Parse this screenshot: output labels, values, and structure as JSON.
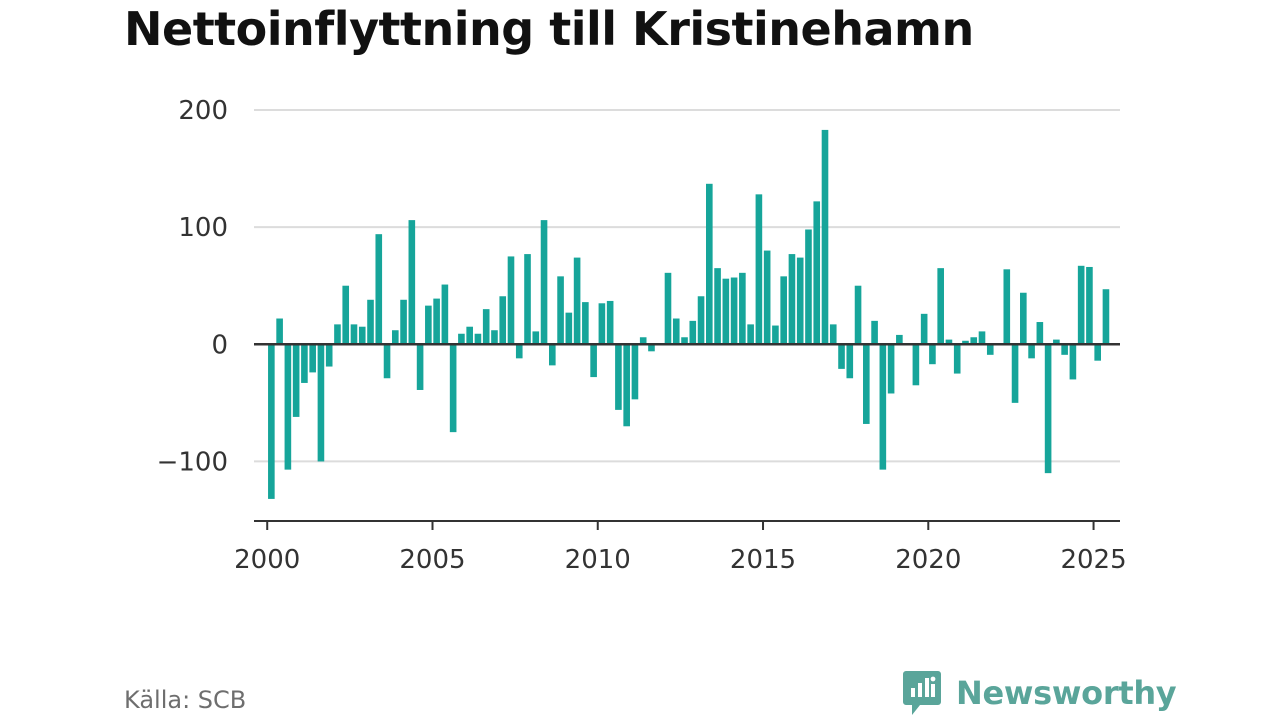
{
  "title": "Nettoinflyttning till Kristinehamn",
  "source": "Källa: SCB",
  "brand": {
    "name": "Newsworthy",
    "icon": "newsworthy-logo-icon",
    "color": "#5aa59a"
  },
  "colors": {
    "bar": "#16a59a",
    "grid": "#dcdcdc",
    "zero_line": "#333333",
    "axis": "#333333"
  },
  "chart_data": {
    "type": "bar",
    "title": "Nettoinflyttning till Kristinehamn",
    "xlabel": "",
    "ylabel": "",
    "ylim": [
      -150,
      200
    ],
    "xlim": [
      1999.6,
      2025.8
    ],
    "grid": true,
    "legend": "none",
    "y_ticks": [
      -100,
      0,
      100,
      200
    ],
    "y_tick_labels": [
      "−100",
      "0",
      "100",
      "200"
    ],
    "x_ticks": [
      2000,
      2005,
      2010,
      2015,
      2020,
      2025
    ],
    "x_tick_labels": [
      "2000",
      "2005",
      "2010",
      "2015",
      "2020",
      "2025"
    ],
    "x": [
      "2000-01-01",
      "2000-04-01",
      "2000-07-01",
      "2000-10-01",
      "2001-01-01",
      "2001-04-01",
      "2001-07-01",
      "2001-10-01",
      "2002-01-01",
      "2002-04-01",
      "2002-07-01",
      "2002-10-01",
      "2003-01-01",
      "2003-04-01",
      "2003-07-01",
      "2003-10-01",
      "2004-01-01",
      "2004-04-01",
      "2004-07-01",
      "2004-10-01",
      "2005-01-01",
      "2005-04-01",
      "2005-07-01",
      "2005-10-01",
      "2006-01-01",
      "2006-04-01",
      "2006-07-01",
      "2006-10-01",
      "2007-01-01",
      "2007-04-01",
      "2007-07-01",
      "2007-10-01",
      "2008-01-01",
      "2008-04-01",
      "2008-07-01",
      "2008-10-01",
      "2009-01-01",
      "2009-04-01",
      "2009-07-01",
      "2009-10-01",
      "2010-01-01",
      "2010-04-01",
      "2010-07-01",
      "2010-10-01",
      "2011-01-01",
      "2011-04-01",
      "2011-07-01",
      "2011-10-01",
      "2012-01-01",
      "2012-04-01",
      "2012-07-01",
      "2012-10-01",
      "2013-01-01",
      "2013-04-01",
      "2013-07-01",
      "2013-10-01",
      "2014-01-01",
      "2014-04-01",
      "2014-07-01",
      "2014-10-01",
      "2015-01-01",
      "2015-04-01",
      "2015-07-01",
      "2015-10-01",
      "2016-01-01",
      "2016-04-01",
      "2016-07-01",
      "2016-10-01",
      "2017-01-01",
      "2017-04-01",
      "2017-07-01",
      "2017-10-01",
      "2018-01-01",
      "2018-04-01",
      "2018-07-01",
      "2018-10-01",
      "2019-01-01",
      "2019-04-01",
      "2019-07-01",
      "2019-10-01",
      "2020-01-01",
      "2020-04-01",
      "2020-07-01",
      "2020-10-01",
      "2021-01-01",
      "2021-04-01",
      "2021-07-01",
      "2021-10-01",
      "2022-01-01",
      "2022-04-01",
      "2022-07-01",
      "2022-10-01",
      "2023-01-01",
      "2023-04-01",
      "2023-07-01",
      "2023-10-01",
      "2024-01-01",
      "2024-04-01",
      "2024-07-01",
      "2024-10-01",
      "2025-01-01",
      "2025-04-01"
    ],
    "values": [
      -132,
      22,
      -107,
      -62,
      -33,
      -24,
      -100,
      -19,
      17,
      50,
      17,
      15,
      38,
      94,
      -29,
      12,
      38,
      106,
      -39,
      33,
      39,
      51,
      -75,
      9,
      15,
      9,
      30,
      12,
      41,
      75,
      -12,
      77,
      11,
      106,
      -18,
      58,
      27,
      74,
      36,
      -28,
      35,
      37,
      -56,
      -70,
      -47,
      6,
      -6,
      -1,
      61,
      22,
      6,
      20,
      41,
      137,
      65,
      56,
      57,
      61,
      17,
      128,
      80,
      16,
      58,
      77,
      74,
      98,
      122,
      183,
      17,
      -21,
      -29,
      50,
      -68,
      20,
      -107,
      -42,
      8,
      -1,
      -35,
      26,
      -17,
      65,
      4,
      -25,
      3,
      6,
      11,
      -9,
      -1,
      64,
      -50,
      44,
      -12,
      19,
      -110,
      4,
      -9,
      -30,
      67,
      66,
      -14,
      47
    ]
  }
}
